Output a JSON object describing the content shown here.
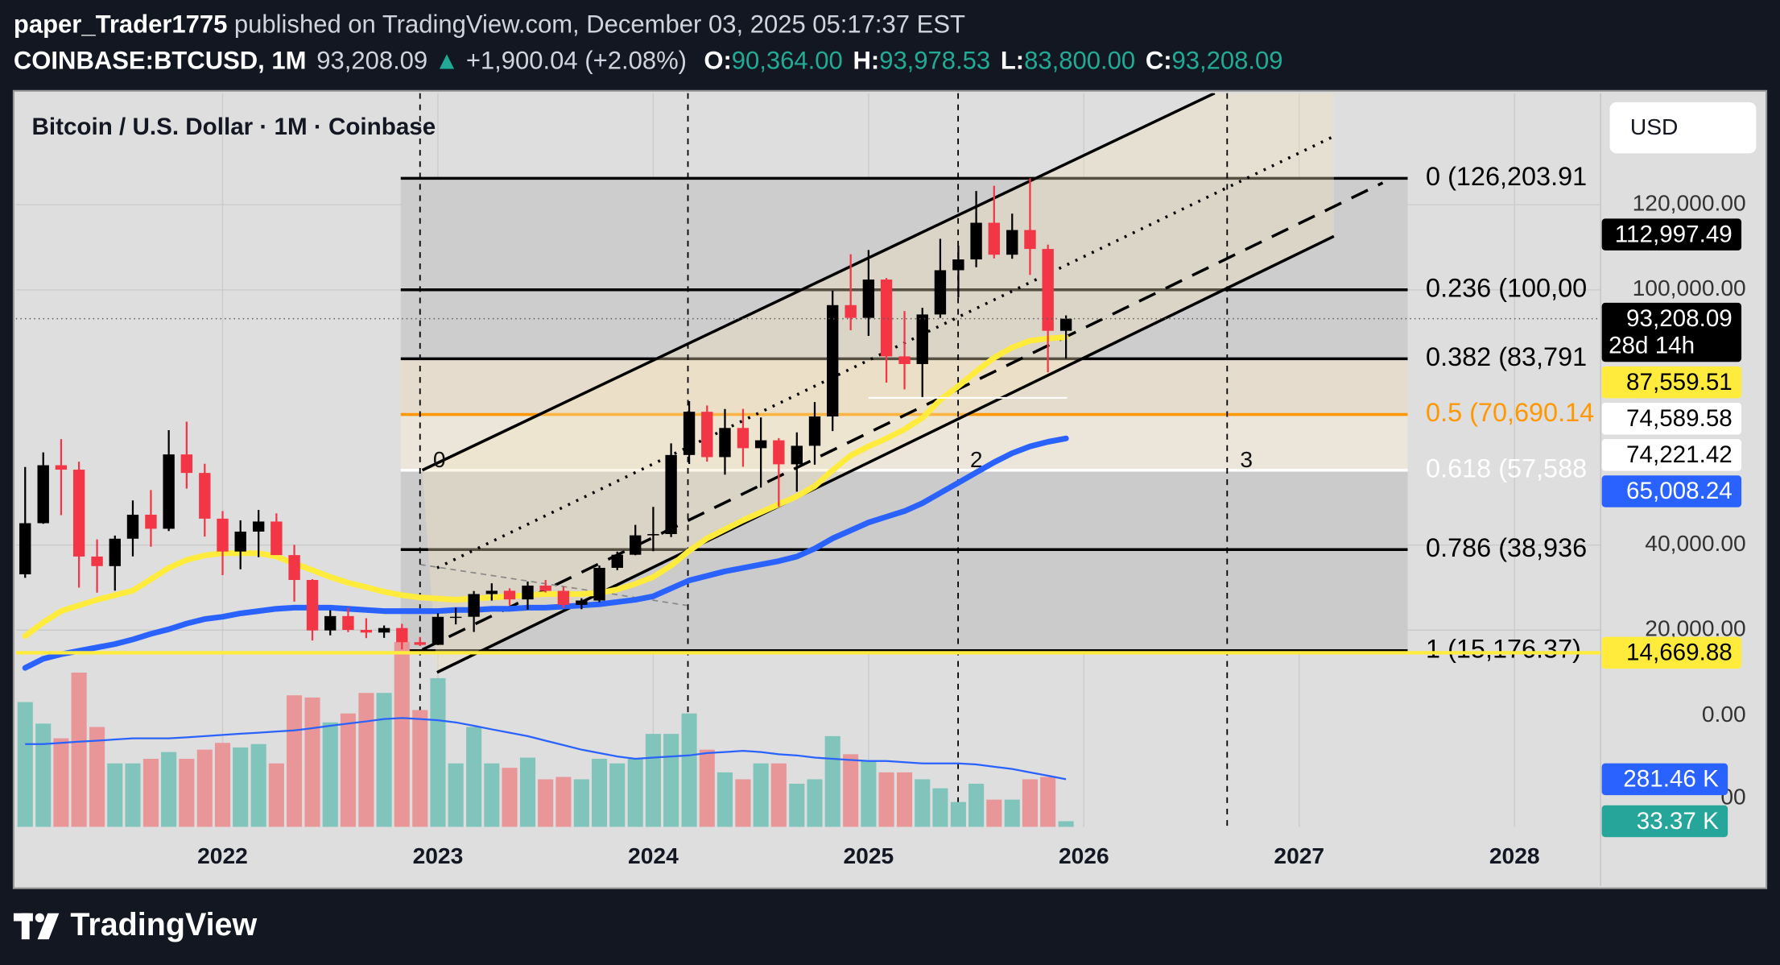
{
  "header": {
    "author": "paper_Trader1775",
    "published": "published on TradingView.com, December 03, 2025 05:17:37 EST",
    "symbol": "COINBASE:BTCUSD, 1M",
    "last": "93,208.09",
    "arrow": "▲",
    "change": "+1,900.04 (+2.08%)",
    "ohlc": [
      {
        "key": "O:",
        "value": "90,364.00"
      },
      {
        "key": "H:",
        "value": "93,978.53"
      },
      {
        "key": "L:",
        "value": "83,800.00"
      },
      {
        "key": "C:",
        "value": "93,208.09"
      }
    ]
  },
  "chart_data": {
    "type": "candlestick",
    "title": "Bitcoin / U.S. Dollar · 1M · Coinbase",
    "currency": "USD",
    "x": [
      2021.083,
      2021.167,
      2021.25,
      2021.333,
      2021.417,
      2021.5,
      2021.583,
      2021.667,
      2021.75,
      2021.833,
      2021.917,
      2022,
      2022.083,
      2022.167,
      2022.25,
      2022.333,
      2022.417,
      2022.5,
      2022.583,
      2022.667,
      2022.75,
      2022.833,
      2022.917,
      2023,
      2023.083,
      2023.167,
      2023.25,
      2023.333,
      2023.417,
      2023.5,
      2023.583,
      2023.667,
      2023.75,
      2023.833,
      2023.917,
      2024,
      2024.083,
      2024.167,
      2024.25,
      2024.333,
      2024.417,
      2024.5,
      2024.583,
      2024.667,
      2024.75,
      2024.833,
      2024.917,
      2025,
      2025.083,
      2025.167,
      2025.25,
      2025.333,
      2025.417,
      2025.5,
      2025.583,
      2025.667,
      2025.75,
      2025.833,
      2025.917
    ],
    "open": [
      33114,
      45137,
      58763,
      57720,
      37298,
      35045,
      41490,
      47130,
      43828,
      61300,
      56950,
      46200,
      38480,
      43160,
      45530,
      37640,
      31790,
      19930,
      23300,
      20050,
      19430,
      20490,
      17165,
      16540,
      23125,
      23140,
      28480,
      29250,
      27220,
      30470,
      29230,
      25940,
      26960,
      34640,
      37720,
      42280,
      42580,
      61170,
      71330,
      60670,
      67520,
      62770,
      64620,
      58980,
      63330,
      70220,
      96400,
      93400,
      102410,
      84350,
      82550,
      94200,
      104600,
      107140,
      115760,
      108250,
      114050,
      109600,
      90364
    ],
    "high": [
      58352,
      61788,
      64895,
      59595,
      41330,
      42235,
      50500,
      52920,
      67000,
      69000,
      59100,
      47990,
      45800,
      48240,
      47450,
      40050,
      31990,
      24670,
      25200,
      22800,
      21090,
      21480,
      18390,
      23960,
      25250,
      29190,
      31000,
      29820,
      31430,
      31800,
      30200,
      27480,
      35200,
      38450,
      44740,
      48970,
      63900,
      73835,
      72800,
      71980,
      72000,
      70000,
      65140,
      66500,
      73620,
      99800,
      108350,
      109350,
      102780,
      95000,
      95770,
      111980,
      110400,
      123220,
      124460,
      117900,
      126203.91,
      110600,
      93978.53
    ],
    "low": [
      32296,
      45000,
      47044,
      30000,
      28800,
      29278,
      37332,
      39600,
      43300,
      53256,
      42000,
      32917,
      34300,
      37155,
      37700,
      26700,
      17567,
      18780,
      19540,
      18120,
      18190,
      15476,
      16260,
      16490,
      21350,
      19570,
      26940,
      25820,
      24800,
      28860,
      25170,
      24920,
      26560,
      34100,
      37600,
      38550,
      41880,
      59050,
      59600,
      56550,
      58400,
      53500,
      49000,
      52550,
      58900,
      66800,
      90500,
      89170,
      78180,
      76600,
      74590,
      93400,
      98200,
      105300,
      107400,
      107300,
      103500,
      80600,
      83800
    ],
    "close": [
      45137,
      58763,
      57720,
      37298,
      35045,
      41490,
      47130,
      43828,
      61300,
      56950,
      46200,
      38480,
      43160,
      45530,
      37640,
      31790,
      19930,
      23300,
      20050,
      19430,
      20490,
      17165,
      16540,
      23125,
      23140,
      28480,
      29250,
      27220,
      30470,
      29230,
      25940,
      26960,
      34640,
      37720,
      42280,
      42580,
      61170,
      71330,
      60670,
      67520,
      62770,
      64620,
      58980,
      63330,
      70220,
      96400,
      93400,
      102410,
      84350,
      82550,
      94200,
      104600,
      107140,
      115760,
      108250,
      114050,
      109600,
      90364,
      93208.09
    ],
    "up_color": "#000000",
    "down_color": "#f23645",
    "xlim": [
      2021.04,
      2028.4
    ],
    "xticks": [
      2022,
      2023,
      2024,
      2025,
      2026,
      2027,
      2028
    ],
    "ylim": [
      -26253,
      146229
    ],
    "yticks": [
      {
        "value": 20000,
        "label": "20,000.00"
      },
      {
        "value": 40000,
        "label": "40,000.00"
      },
      {
        "value": 100000,
        "label": "100,000.00"
      },
      {
        "value": 120000,
        "label": "120,000.00"
      }
    ],
    "grid": true,
    "lines": [
      {
        "color": "#ffeb3b",
        "width": 5,
        "values": [
          18600,
          21800,
          24470,
          25810,
          27140,
          28210,
          29280,
          31950,
          34620,
          36490,
          37560,
          38090,
          38090,
          38090,
          37290,
          35690,
          34090,
          32490,
          31150,
          30090,
          29020,
          28210,
          27680,
          27410,
          27140,
          27410,
          27680,
          27950,
          28210,
          28480,
          28480,
          28480,
          28750,
          29550,
          30880,
          32490,
          35160,
          38630,
          41560,
          43700,
          45830,
          47700,
          49570,
          51440,
          53840,
          57580,
          61060,
          63190,
          65060,
          67200,
          69870,
          74140,
          77340,
          80810,
          84020,
          86420,
          88030,
          88560,
          88830
        ]
      },
      {
        "color": "#2962ff",
        "width": 5,
        "values": [
          11130,
          13260,
          14330,
          15130,
          15930,
          16730,
          17800,
          19130,
          20200,
          21540,
          22600,
          23140,
          23940,
          24470,
          25010,
          25280,
          25280,
          25280,
          25010,
          24740,
          24470,
          24470,
          24470,
          24470,
          24740,
          24740,
          25010,
          25010,
          25280,
          25280,
          25540,
          25810,
          26080,
          26610,
          27140,
          27950,
          29810,
          31680,
          32750,
          33820,
          34620,
          35420,
          36220,
          37290,
          39160,
          41560,
          43430,
          45300,
          46640,
          47970,
          49840,
          52240,
          54640,
          57050,
          59450,
          61590,
          63190,
          64260,
          65060
        ]
      }
    ],
    "fib_levels": [
      {
        "value": 126203.91,
        "label": "0 (126,203.91",
        "color": "#000000",
        "fill": "#cdcdcd"
      },
      {
        "value": 100001,
        "label": "0.236 (100,00",
        "color": "#000000",
        "fill": "#cdcdcd"
      },
      {
        "value": 83791,
        "label": "0.382 (83,791",
        "color": "#000000",
        "fill": "#e6dccd"
      },
      {
        "value": 70690.14,
        "label": "0.5 (70,690.14",
        "color": "#ff9800",
        "fill": "#ebe5da"
      },
      {
        "value": 57588,
        "label": "0.618 (57,588",
        "color": "#ffffff",
        "fill": "#cbcbcb"
      },
      {
        "value": 38936,
        "label": "0.786 (38,936",
        "color": "#000000",
        "fill": "#cbcbcb"
      },
      {
        "value": 15176.37,
        "label": "1 (15,176.37)",
        "color": "#000000"
      }
    ],
    "cycle_labels": [
      "0",
      "2",
      "3"
    ],
    "price_labels": [
      {
        "value": 112997.49,
        "label": "112,997.49",
        "bg": "#000000",
        "fg": "#ffffff"
      },
      {
        "value": 93208.09,
        "label": "93,208.09",
        "sub": "28d 14h",
        "bg": "#000000",
        "fg": "#ffffff",
        "line": "dotted"
      },
      {
        "value": 87559.51,
        "label": "87,559.51",
        "bg": "#ffeb3b",
        "fg": "#000000"
      },
      {
        "value": 74589.58,
        "label": "74,589.58",
        "bg": "#ffffff",
        "fg": "#000000",
        "line": "short"
      },
      {
        "value": 74221.42,
        "label": "74,221.42",
        "bg": "#ffffff",
        "fg": "#000000"
      },
      {
        "value": 65008.24,
        "label": "65,008.24",
        "bg": "#2962ff",
        "fg": "#ffffff"
      },
      {
        "value": 14669.88,
        "label": "14,669.88",
        "bg": "#ffeb3b",
        "fg": "#000000",
        "line": "full"
      }
    ],
    "volume": {
      "values": [
        737,
        610,
        523,
        911,
        590,
        375,
        375,
        402,
        442,
        402,
        456,
        496,
        469,
        489,
        375,
        777,
        764,
        617,
        670,
        791,
        791,
        1092,
        690,
        878,
        375,
        590,
        375,
        349,
        409,
        281,
        295,
        281,
        402,
        375,
        402,
        549,
        549,
        670,
        456,
        322,
        281,
        375,
        375,
        255,
        281,
        536,
        429,
        389,
        322,
        322,
        281,
        228,
        147,
        255,
        161,
        161,
        281,
        295,
        33.37
      ],
      "ma": [
        489,
        489,
        496,
        503,
        509,
        516,
        523,
        523,
        523,
        529,
        536,
        543,
        550,
        556,
        563,
        570,
        583,
        597,
        610,
        623,
        637,
        643,
        637,
        630,
        617,
        597,
        576,
        556,
        536,
        509,
        483,
        456,
        436,
        416,
        402,
        409,
        416,
        422,
        436,
        442,
        449,
        442,
        429,
        422,
        409,
        402,
        395,
        389,
        389,
        382,
        375,
        375,
        375,
        369,
        355,
        342,
        322,
        302,
        281.46
      ],
      "up_color": "#80c4bc",
      "down_color": "#e99699",
      "ma_color": "#2962ff",
      "ylim": [
        0,
        1100
      ],
      "scale_labels": [
        "0.00",
        "00"
      ],
      "labels": [
        {
          "value": 281.46,
          "label": "281.46 K",
          "bg": "#2962ff",
          "fg": "#ffffff"
        },
        {
          "value": 33.37,
          "label": "33.37 K",
          "bg": "#26a69a",
          "fg": "#ffffff"
        }
      ]
    }
  },
  "footer": {
    "brand": "TradingView"
  }
}
